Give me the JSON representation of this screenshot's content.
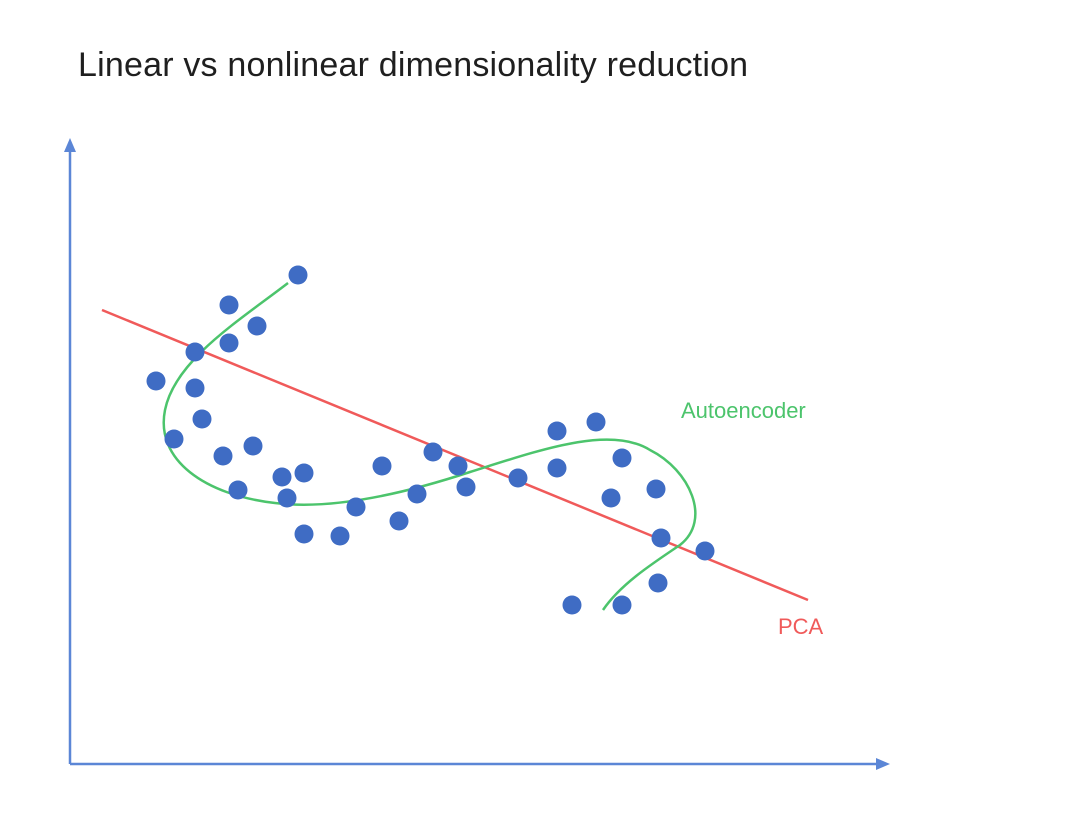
{
  "title": "Linear vs nonlinear dimensionality reduction",
  "labels": {
    "autoencoder": "Autoencoder",
    "pca": "PCA"
  },
  "colors": {
    "axis": "#5b86d6",
    "points": "#3f6cc4",
    "pca": "#f05a5a",
    "autoencoder": "#4cc46c",
    "title": "#1f1f1f"
  },
  "chart_data": {
    "type": "scatter",
    "title": "Linear vs nonlinear dimensionality reduction",
    "xlabel": "",
    "ylabel": "",
    "grid": false,
    "series": [
      {
        "name": "",
        "points": [
          [
            298,
            275
          ],
          [
            229,
            305
          ],
          [
            257,
            326
          ],
          [
            229,
            343
          ],
          [
            195,
            352
          ],
          [
            156,
            381
          ],
          [
            195,
            388
          ],
          [
            202,
            419
          ],
          [
            174,
            439
          ],
          [
            223,
            456
          ],
          [
            253,
            446
          ],
          [
            238,
            490
          ],
          [
            282,
            477
          ],
          [
            304,
            473
          ],
          [
            287,
            498
          ],
          [
            304,
            534
          ],
          [
            340,
            536
          ],
          [
            356,
            507
          ],
          [
            382,
            466
          ],
          [
            399,
            521
          ],
          [
            417,
            494
          ],
          [
            433,
            452
          ],
          [
            458,
            466
          ],
          [
            466,
            487
          ],
          [
            518,
            478
          ],
          [
            557,
            431
          ],
          [
            596,
            422
          ],
          [
            557,
            468
          ],
          [
            622,
            458
          ],
          [
            611,
            498
          ],
          [
            656,
            489
          ],
          [
            661,
            538
          ],
          [
            705,
            551
          ],
          [
            658,
            583
          ],
          [
            572,
            605
          ],
          [
            622,
            605
          ]
        ]
      }
    ],
    "lines": [
      {
        "name": "PCA",
        "kind": "linear"
      },
      {
        "name": "Autoencoder",
        "kind": "nonlinear"
      }
    ]
  }
}
